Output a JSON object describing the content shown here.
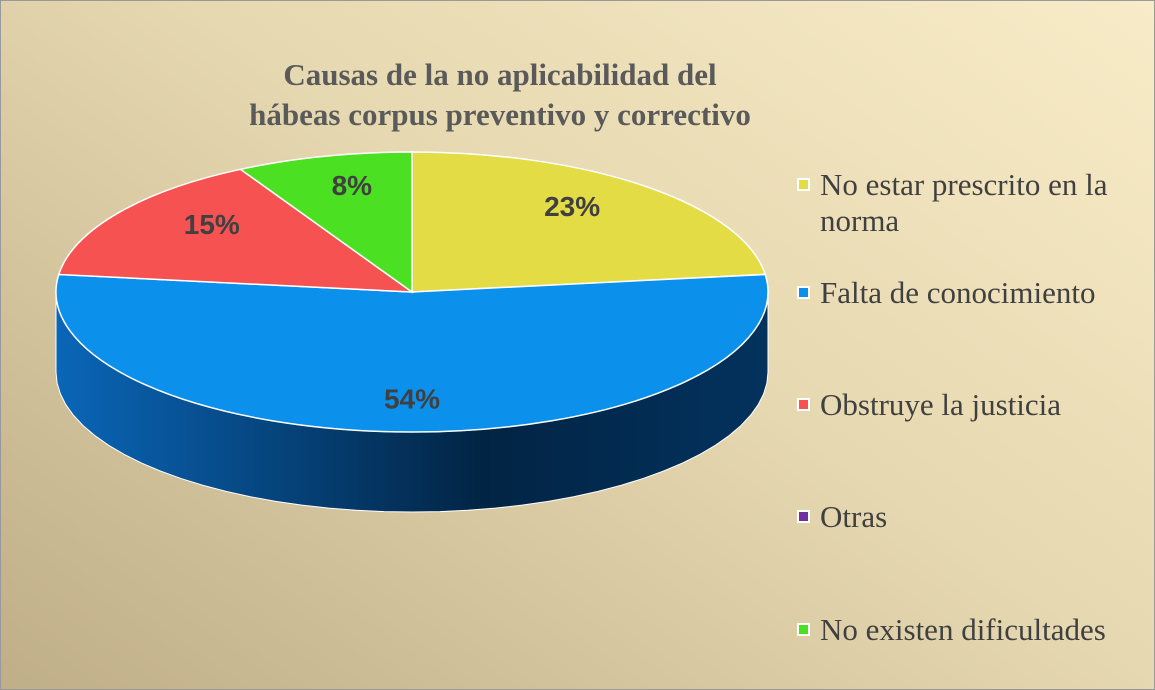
{
  "chart_data": {
    "type": "pie3d",
    "title": "Causas de la no aplicabilidad del hábeas corpus preventivo y correctivo",
    "categories": [
      "No estar prescrito en la norma",
      "Falta de conocimiento",
      "Obstruye la justicia",
      "Otras",
      "No existen dificultades"
    ],
    "values": [
      23,
      54,
      15,
      0,
      8
    ],
    "value_labels": [
      "23%",
      "54%",
      "15%",
      null,
      "8%"
    ],
    "colors": [
      "#e3dc45",
      "#0b90ec",
      "#f65252",
      "#7030a0",
      "#4ce022"
    ],
    "legend": "right"
  }
}
